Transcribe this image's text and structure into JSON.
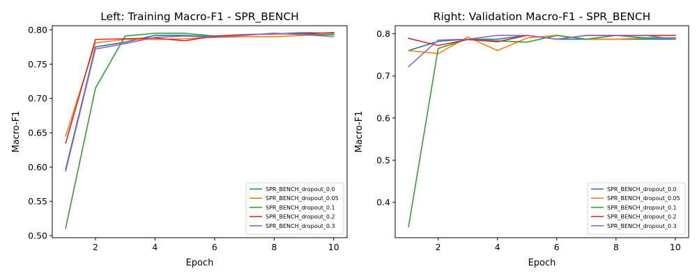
{
  "chart_data": [
    {
      "type": "line",
      "title": "Left: Training Macro-F1 - SPR_BENCH",
      "xlabel": "Epoch",
      "ylabel": "Macro-F1",
      "xlim": [
        0.55,
        10.45
      ],
      "ylim": [
        0.497,
        0.806
      ],
      "xticks": [
        2,
        4,
        6,
        8,
        10
      ],
      "yticks": [
        0.5,
        0.55,
        0.6,
        0.65,
        0.7,
        0.75,
        0.8
      ],
      "ytick_labels": [
        "0.50",
        "0.55",
        "0.60",
        "0.65",
        "0.70",
        "0.75",
        "0.80"
      ],
      "legend_position": "lower-right",
      "x": [
        1,
        2,
        3,
        4,
        5,
        6,
        7,
        8,
        9,
        10
      ],
      "series": [
        {
          "name": "SPR_BENCH_dropout_0.0",
          "color": "#1f77b4",
          "values": [
            0.597,
            0.775,
            0.782,
            0.792,
            0.792,
            0.79,
            0.793,
            0.794,
            0.796,
            0.795
          ]
        },
        {
          "name": "SPR_BENCH_dropout_0.05",
          "color": "#ff7f0e",
          "values": [
            0.645,
            0.781,
            0.786,
            0.786,
            0.787,
            0.789,
            0.79,
            0.79,
            0.792,
            0.793
          ]
        },
        {
          "name": "SPR_BENCH_dropout_0.1",
          "color": "#2ca02c",
          "values": [
            0.511,
            0.715,
            0.791,
            0.795,
            0.795,
            0.791,
            0.792,
            0.795,
            0.793,
            0.793
          ]
        },
        {
          "name": "SPR_BENCH_dropout_0.2",
          "color": "#d62728",
          "values": [
            0.635,
            0.786,
            0.787,
            0.788,
            0.784,
            0.791,
            0.793,
            0.794,
            0.794,
            0.796
          ]
        },
        {
          "name": "SPR_BENCH_dropout_0.3",
          "color": "#9467bd",
          "values": [
            0.594,
            0.772,
            0.78,
            0.789,
            0.791,
            0.789,
            0.792,
            0.795,
            0.793,
            0.79
          ]
        }
      ]
    },
    {
      "type": "line",
      "title": "Right: Validation Macro-F1 - SPR_BENCH",
      "xlabel": "Epoch",
      "ylabel": "Macro-F1",
      "xlim": [
        0.55,
        10.45
      ],
      "ylim": [
        0.316,
        0.819
      ],
      "xticks": [
        2,
        4,
        6,
        8,
        10
      ],
      "yticks": [
        0.4,
        0.5,
        0.6,
        0.7,
        0.8
      ],
      "ytick_labels": [
        "0.4",
        "0.5",
        "0.6",
        "0.7",
        "0.8"
      ],
      "legend_position": "lower-right",
      "x": [
        1,
        2,
        3,
        4,
        5,
        6,
        7,
        8,
        9,
        10
      ],
      "series": [
        {
          "name": "SPR_BENCH_dropout_0.0",
          "color": "#1f77b4",
          "values": [
            0.76,
            0.782,
            0.787,
            0.787,
            0.796,
            0.787,
            0.787,
            0.787,
            0.787,
            0.787
          ]
        },
        {
          "name": "SPR_BENCH_dropout_0.05",
          "color": "#ff7f0e",
          "values": [
            0.76,
            0.753,
            0.792,
            0.76,
            0.79,
            0.796,
            0.787,
            0.787,
            0.79,
            0.79
          ]
        },
        {
          "name": "SPR_BENCH_dropout_0.1",
          "color": "#2ca02c",
          "values": [
            0.342,
            0.765,
            0.787,
            0.783,
            0.78,
            0.796,
            0.787,
            0.796,
            0.79,
            0.79
          ]
        },
        {
          "name": "SPR_BENCH_dropout_0.2",
          "color": "#d62728",
          "values": [
            0.789,
            0.772,
            0.786,
            0.781,
            0.796,
            0.787,
            0.796,
            0.796,
            0.796,
            0.796
          ]
        },
        {
          "name": "SPR_BENCH_dropout_0.3",
          "color": "#9467bd",
          "values": [
            0.722,
            0.785,
            0.787,
            0.796,
            0.796,
            0.787,
            0.796,
            0.796,
            0.796,
            0.787
          ]
        }
      ]
    }
  ]
}
